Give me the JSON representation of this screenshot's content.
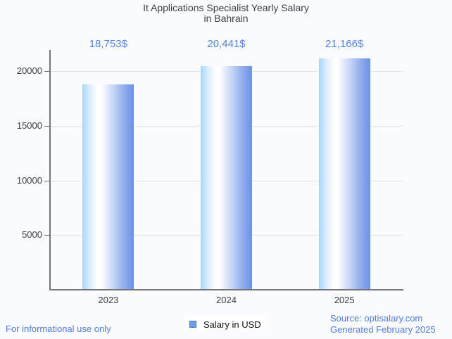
{
  "title": {
    "line1": "It Applications Specialist Yearly Salary",
    "line2": "in Bahrain"
  },
  "chart_data": {
    "type": "bar",
    "title": "It Applications Specialist Yearly Salary in Bahrain",
    "categories": [
      "2023",
      "2024",
      "2025"
    ],
    "series": [
      {
        "name": "Salary in USD",
        "values": [
          18753,
          20441,
          21166
        ]
      }
    ],
    "value_labels": [
      "18,753$",
      "20,441$",
      "21,166$"
    ],
    "yticks": [
      5000,
      10000,
      15000,
      20000
    ],
    "ytick_labels": [
      "5000",
      "10000",
      "15000",
      "20000"
    ],
    "ylim": [
      0,
      21900
    ],
    "grid": true,
    "legend_position": "bottom",
    "bar_gradient_stops": [
      "#a7d5fc 0%",
      "#ddeefe 15%",
      "#ffffff 30%",
      "#ffffff 36%",
      "#e4eafb 48%",
      "#c2d2f5 62%",
      "#93afee 80%",
      "#6a92e8 100%"
    ],
    "value_label_color": "#5585dd"
  },
  "legend": {
    "label": "Salary in USD",
    "swatch_fill": "#6d9eeb",
    "swatch_border": "#5077b5"
  },
  "footer": {
    "left": "For informational use only",
    "source": "Source: optisalary.com",
    "generated": "Generated February 2025",
    "color": "#4f7cdf"
  }
}
